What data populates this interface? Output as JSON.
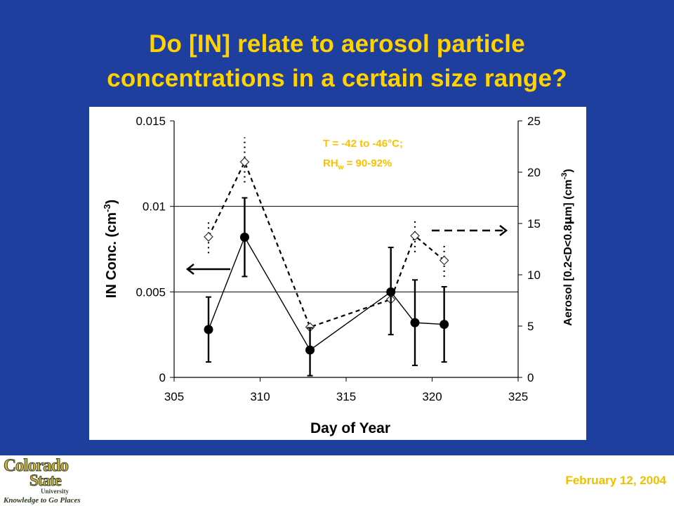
{
  "slide": {
    "title_line1": "Do [IN] relate to aerosol particle",
    "title_line2": "concentrations in a certain size range?",
    "date": "February 12, 2004"
  },
  "logo": {
    "line1": "Colorado",
    "line2": "State",
    "line3": "University",
    "tagline": "Knowledge to Go Places"
  },
  "colors": {
    "background": "#1f3f9f",
    "title": "#ffd200",
    "annotation": "#ffc000",
    "logo": "#c9a227",
    "in_series": "#000000"
  },
  "chart_data": {
    "type": "line",
    "xlabel": "Day of Year",
    "ylabel_left": "IN Conc. (cm",
    "ylabel_left_sup": "-3",
    "ylabel_left_tail": ")",
    "ylabel_right": "Aerosol [0.2<D<0.8",
    "ylabel_right_mu": "μ",
    "ylabel_right_mid": "m] (cm",
    "ylabel_right_sup": "-3",
    "ylabel_right_tail": ")",
    "xlim": [
      305,
      325
    ],
    "ylim_left": [
      0,
      0.015
    ],
    "ylim_right": [
      0,
      25
    ],
    "x_ticks": [
      "305",
      "310",
      "315",
      "320",
      "325"
    ],
    "y_left_ticks": [
      "0",
      "0.005",
      "0.01",
      "0.015"
    ],
    "y_right_ticks": [
      "0",
      "5",
      "10",
      "15",
      "20",
      "25"
    ],
    "gridlines_left": [
      0.005,
      0.01
    ],
    "annotation_line1": "T = -42 to -46°C;",
    "annotation_line2_pre": "RH",
    "annotation_line2_sub": "w",
    "annotation_line2_post": " = 90-92%",
    "series": [
      {
        "axis": "left",
        "style": "solid line, filled circles, error bars",
        "points": [
          {
            "x": 307,
            "y": 0.0028,
            "err_low": 0.0009,
            "err_high": 0.0047
          },
          {
            "x": 309.1,
            "y": 0.0082,
            "err_low": 0.0059,
            "err_high": 0.0105
          },
          {
            "x": 312.9,
            "y": 0.0016,
            "err_low": 0.0001,
            "err_high": 0.0029
          },
          {
            "x": 317.6,
            "y": 0.005,
            "err_low": 0.0025,
            "err_high": 0.0076
          },
          {
            "x": 319,
            "y": 0.0032,
            "err_low": 0.0007,
            "err_high": 0.0057
          },
          {
            "x": 320.7,
            "y": 0.0031,
            "err_low": 0.0009,
            "err_high": 0.0053
          }
        ]
      },
      {
        "axis": "right",
        "style": "dashed line, open diamonds, dotted error bars",
        "points": [
          {
            "x": 307,
            "y": 13.7,
            "err_low": 12.1,
            "err_high": 15.3
          },
          {
            "x": 309.1,
            "y": 21,
            "err_low": 19,
            "err_high": 23.4
          },
          {
            "x": 312.9,
            "y": 4.9,
            "err_low": 4.9,
            "err_high": 4.9
          },
          {
            "x": 317.6,
            "y": 7.6,
            "err_low": 7.6,
            "err_high": 7.6
          },
          {
            "x": 319,
            "y": 13.8,
            "err_low": 12.2,
            "err_high": 15.5
          },
          {
            "x": 320.7,
            "y": 11.4,
            "err_low": 9.8,
            "err_high": 13.1
          }
        ]
      }
    ],
    "arrows": [
      {
        "points_to": "left axis",
        "style": "solid"
      },
      {
        "points_to": "right axis",
        "style": "dashed"
      }
    ]
  }
}
